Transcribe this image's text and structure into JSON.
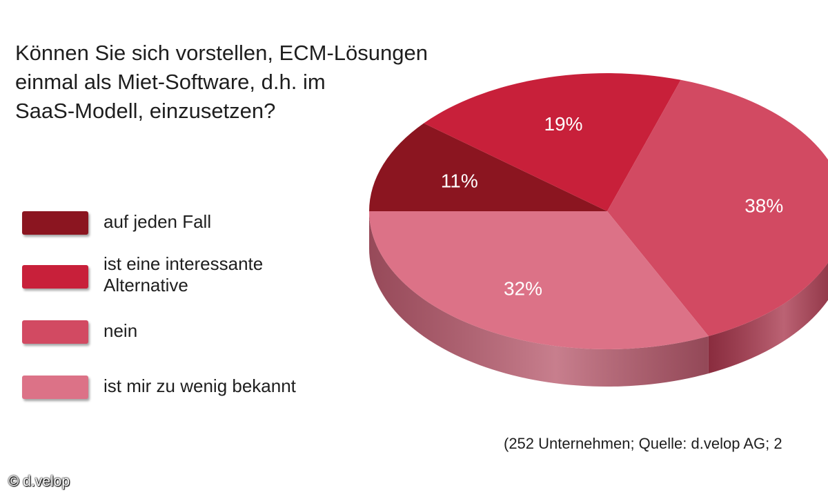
{
  "chart_data": {
    "type": "pie",
    "title_lines": [
      "Können Sie sich vorstellen, ECM-Lösungen",
      "einmal als Miet-Software, d.h. im",
      "SaaS-Modell, einzusetzen?"
    ],
    "categories": [
      "auf jeden Fall",
      "ist eine interessante Alternative",
      "nein",
      "ist mir zu wenig bekannt"
    ],
    "legend_lines": [
      [
        "auf jeden Fall"
      ],
      [
        "ist eine interessante",
        "Alternative"
      ],
      [
        "nein"
      ],
      [
        "ist mir zu wenig bekannt"
      ]
    ],
    "values": [
      11,
      19,
      38,
      32
    ],
    "value_labels": [
      "11%",
      "19%",
      "38%",
      "32%"
    ],
    "unit": "%",
    "colors": [
      "#8b1520",
      "#c8203a",
      "#d24a62",
      "#dc7287"
    ],
    "side_colors": [
      "#6a0f18",
      "#9a1829",
      "#a8364c",
      "#b85a6d"
    ],
    "legend_position": "left",
    "style": "3d"
  },
  "source_note": "(252 Unternehmen; Quelle: d.velop AG; 2",
  "copyright": "© d.velop"
}
